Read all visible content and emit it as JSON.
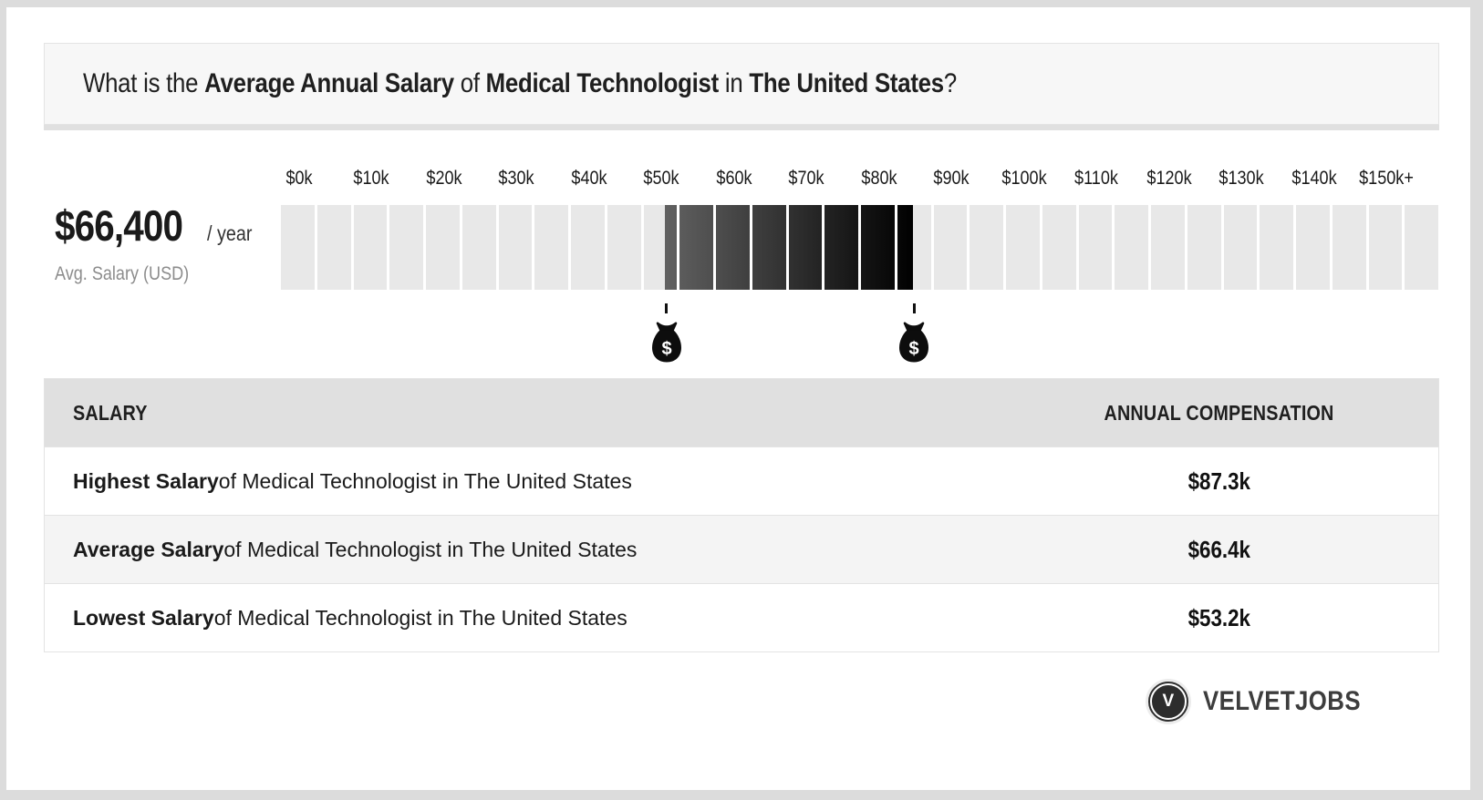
{
  "frame": {
    "background": "#dcdcdc",
    "card_background": "#ffffff"
  },
  "question": {
    "parts": [
      {
        "text": "What is the ",
        "bold": false
      },
      {
        "text": "Average Annual Salary",
        "bold": true
      },
      {
        "text": " of ",
        "bold": false
      },
      {
        "text": "Medical Technologist",
        "bold": true
      },
      {
        "text": " in ",
        "bold": false
      },
      {
        "text": "The United States",
        "bold": true
      },
      {
        "text": "?",
        "bold": false
      }
    ]
  },
  "salary_summary": {
    "amount": "$66,400",
    "per": "/ year",
    "caption": "Avg. Salary (USD)"
  },
  "chart_data": {
    "type": "bar",
    "subtype": "salary-range-strip",
    "axis_labels": [
      "$0k",
      "$10k",
      "$20k",
      "$30k",
      "$40k",
      "$50k",
      "$60k",
      "$70k",
      "$80k",
      "$90k",
      "$100k",
      "$110k",
      "$120k",
      "$130k",
      "$140k",
      "$150k+"
    ],
    "axis_min_k": 0,
    "axis_max_k": 160,
    "segment_size_k": 5,
    "base_segment_color": "#e8e8e8",
    "highlight": {
      "low_k": 53.2,
      "high_k": 87.3,
      "avg_k": 66.4,
      "gradient_from": "#616161",
      "gradient_to": "#000000"
    },
    "markers": [
      {
        "value_k": 53.2,
        "icon": "money-bag-icon"
      },
      {
        "value_k": 87.3,
        "icon": "money-bag-icon"
      }
    ],
    "marker_symbol": "$",
    "legend": "none",
    "grid": false
  },
  "table": {
    "columns": [
      "SALARY",
      "ANNUAL COMPENSATION"
    ],
    "rows": [
      {
        "label_bold": "Highest Salary",
        "label_rest": " of Medical Technologist in The United States",
        "value": "$87.3k"
      },
      {
        "label_bold": "Average Salary",
        "label_rest": " of Medical Technologist in The United States",
        "value": "$66.4k"
      },
      {
        "label_bold": "Lowest Salary",
        "label_rest": " of Medical Technologist in The United States",
        "value": "$53.2k"
      }
    ]
  },
  "branding": {
    "logo_letter": "V",
    "brand_name": "VELVETJOBS"
  }
}
